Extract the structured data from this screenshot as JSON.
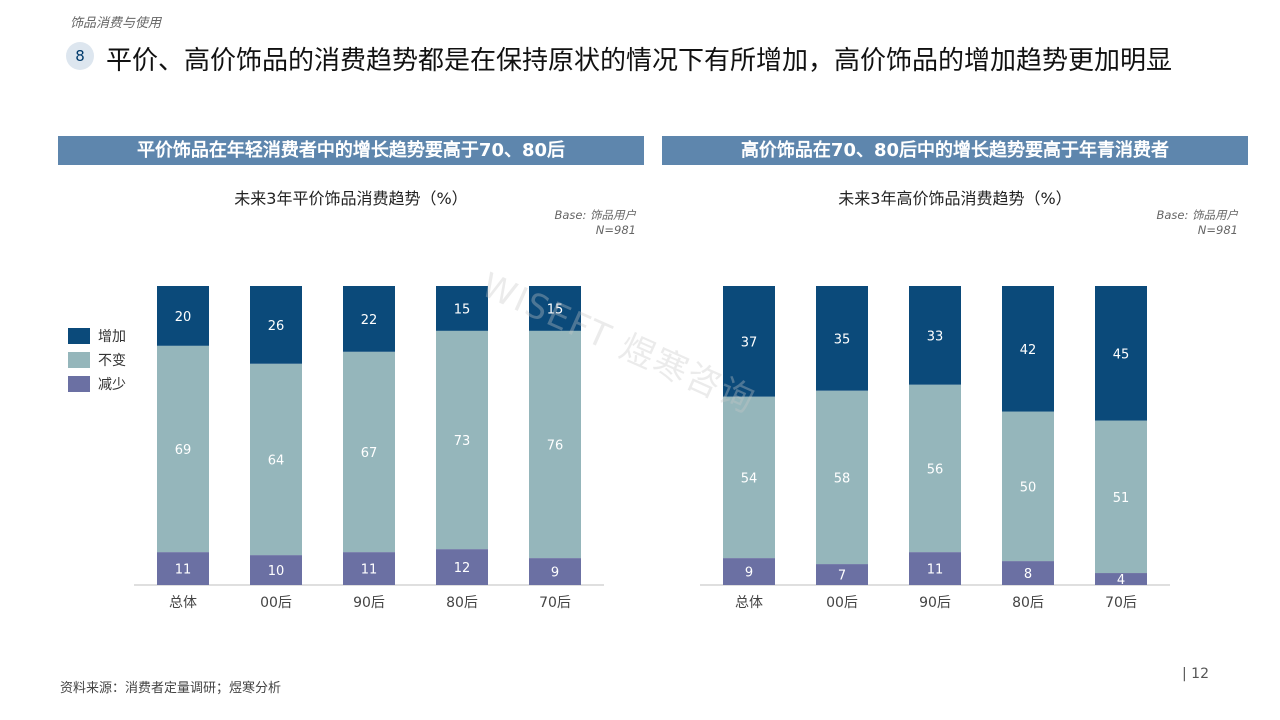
{
  "header": {
    "section_label": "饰品消费与使用",
    "page_badge": "8",
    "title": "平价、高价饰品的消费趋势都是在保持原状的情况下有所增加，高价饰品的增加趋势更加明显"
  },
  "banners": {
    "left": "平价饰品在年轻消费者中的增长趋势要高于70、80后",
    "right": "高价饰品在70、80后中的增长趋势要高于年青消费者"
  },
  "legend": {
    "items": [
      {
        "label": "增加",
        "color": "#0b4a7a"
      },
      {
        "label": "不变",
        "color": "#95b6bb"
      },
      {
        "label": "减少",
        "color": "#6b70a3"
      }
    ]
  },
  "base_note": {
    "line1": "Base: 饰品用户",
    "line2": "N=981"
  },
  "chart_data": [
    {
      "type": "bar",
      "stacked": true,
      "title": "未来3年平价饰品消费趋势（%）",
      "categories": [
        "总体",
        "00后",
        "90后",
        "80后",
        "70后"
      ],
      "series": [
        {
          "name": "减少",
          "values": [
            11,
            10,
            11,
            12,
            9
          ]
        },
        {
          "name": "不变",
          "values": [
            69,
            64,
            67,
            73,
            76
          ]
        },
        {
          "name": "增加",
          "values": [
            20,
            26,
            22,
            15,
            15
          ]
        }
      ],
      "ylim": [
        0,
        100
      ],
      "legend_position": "left"
    },
    {
      "type": "bar",
      "stacked": true,
      "title": "未来3年高价饰品消费趋势（%）",
      "categories": [
        "总体",
        "00后",
        "90后",
        "80后",
        "70后"
      ],
      "series": [
        {
          "name": "减少",
          "values": [
            9,
            7,
            11,
            8,
            4
          ]
        },
        {
          "name": "不变",
          "values": [
            54,
            58,
            56,
            50,
            51
          ]
        },
        {
          "name": "增加",
          "values": [
            37,
            35,
            33,
            42,
            45
          ]
        }
      ],
      "ylim": [
        0,
        100
      ],
      "legend_position": "left"
    }
  ],
  "footer": {
    "source": "资料来源：消费者定量调研；煜寒分析",
    "page_number": "| 12"
  },
  "watermark": "WISEFT 煜寒咨询"
}
